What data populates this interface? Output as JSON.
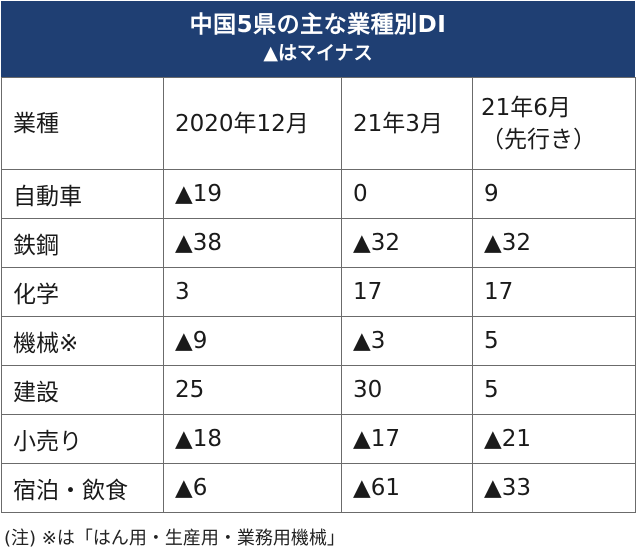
{
  "header": {
    "title": "中国5県の主な業種別DI",
    "subtitle": "▲はマイナス"
  },
  "colors": {
    "header_bg": "#1f3f73",
    "header_text": "#ffffff",
    "border": "#6b6b6b"
  },
  "chart_data": {
    "type": "table",
    "title": "中国5県の主な業種別DI",
    "subtitle": "▲はマイナス",
    "columns": [
      "業種",
      "2020年12月",
      "21年3月",
      "21年6月（先行き）"
    ],
    "column_header_lines": [
      [
        "業種"
      ],
      [
        "2020年12月"
      ],
      [
        "21年3月"
      ],
      [
        "21年6月",
        "（先行き）"
      ]
    ],
    "rows": [
      {
        "industry": "自動車",
        "cells": [
          "▲19",
          "0",
          "9"
        ],
        "values": [
          -19,
          0,
          9
        ]
      },
      {
        "industry": "鉄鋼",
        "cells": [
          "▲38",
          "▲32",
          "▲32"
        ],
        "values": [
          -38,
          -32,
          -32
        ]
      },
      {
        "industry": "化学",
        "cells": [
          "3",
          "17",
          "17"
        ],
        "values": [
          3,
          17,
          17
        ]
      },
      {
        "industry": "機械※",
        "cells": [
          "▲9",
          "▲3",
          "5"
        ],
        "values": [
          -9,
          -3,
          5
        ]
      },
      {
        "industry": "建設",
        "cells": [
          "25",
          "30",
          "5"
        ],
        "values": [
          25,
          30,
          5
        ]
      },
      {
        "industry": "小売り",
        "cells": [
          "▲18",
          "▲17",
          "▲21"
        ],
        "values": [
          -18,
          -17,
          -21
        ]
      },
      {
        "industry": "宿泊・飲食",
        "cells": [
          "▲6",
          "▲61",
          "▲33"
        ],
        "values": [
          -6,
          -61,
          -33
        ]
      }
    ],
    "note": "(注) ※は「はん用・生産用・業務用機械」"
  }
}
